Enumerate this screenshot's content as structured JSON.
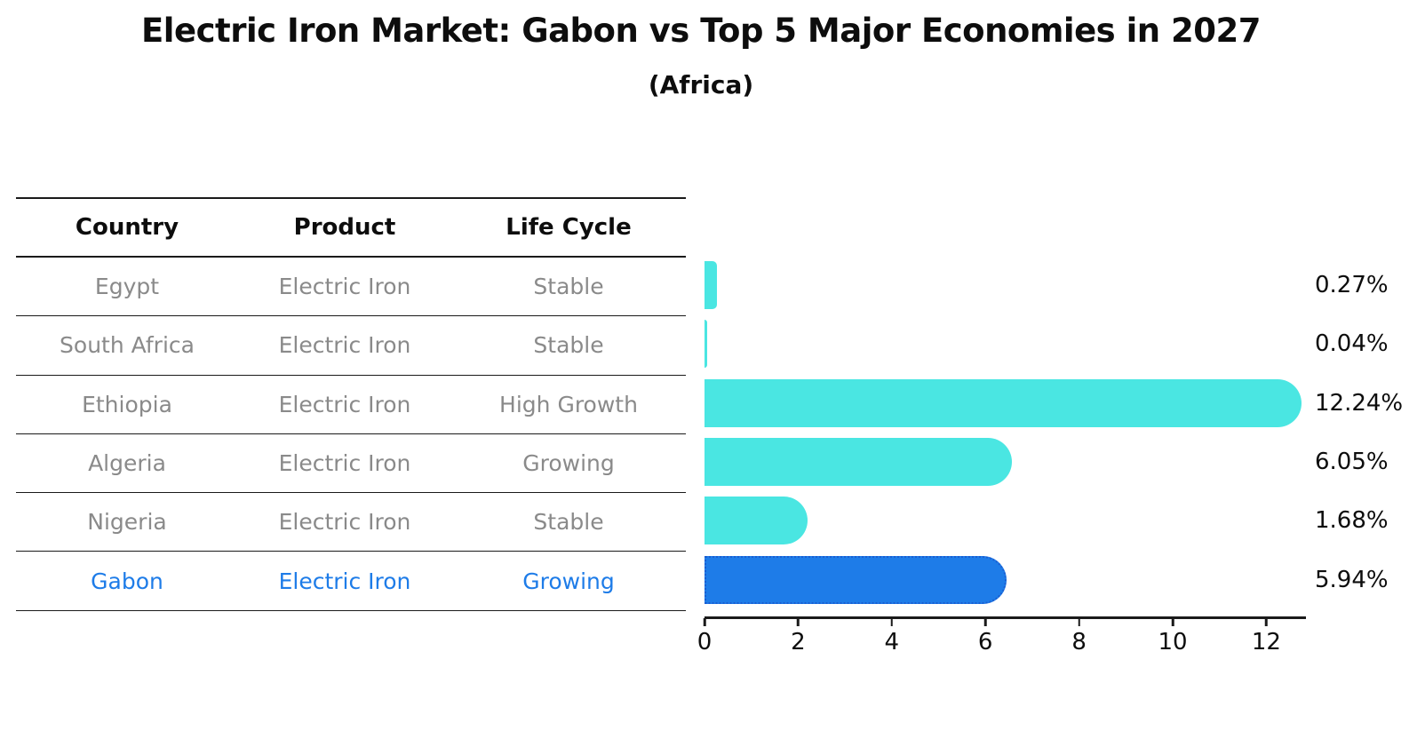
{
  "title": "Electric Iron Market: Gabon vs Top 5 Major Economies in 2027",
  "subtitle": "(Africa)",
  "table": {
    "headers": [
      "Country",
      "Product",
      "Life Cycle"
    ],
    "rows": [
      {
        "country": "Egypt",
        "product": "Electric Iron",
        "life_cycle": "Stable",
        "highlight": false
      },
      {
        "country": "South Africa",
        "product": "Electric Iron",
        "life_cycle": "Stable",
        "highlight": false
      },
      {
        "country": "Ethiopia",
        "product": "Electric Iron",
        "life_cycle": "High Growth",
        "highlight": false
      },
      {
        "country": "Algeria",
        "product": "Electric Iron",
        "life_cycle": "Growing",
        "highlight": false
      },
      {
        "country": "Nigeria",
        "product": "Electric Iron",
        "life_cycle": "Stable",
        "highlight": false
      },
      {
        "country": "Gabon",
        "product": "Electric Iron",
        "life_cycle": "Growing",
        "highlight": true
      }
    ]
  },
  "chart_data": {
    "type": "bar",
    "orientation": "horizontal",
    "title": "Electric Iron Market: Gabon vs Top 5 Major Economies in 2027",
    "subtitle": "(Africa)",
    "categories": [
      "Egypt",
      "South Africa",
      "Ethiopia",
      "Algeria",
      "Nigeria",
      "Gabon"
    ],
    "values": [
      0.27,
      0.04,
      12.24,
      6.05,
      1.68,
      5.94
    ],
    "value_labels": [
      "0.27%",
      "0.04%",
      "12.24%",
      "6.05%",
      "1.68%",
      "5.94%"
    ],
    "xlabel": "",
    "ylabel": "",
    "xlim": [
      0,
      12.81
    ],
    "xticks": [
      0,
      2,
      4,
      6,
      8,
      10,
      12
    ],
    "grid": false,
    "legend": "none",
    "highlight_index": 5,
    "colors": {
      "bar_default": "#4AE6E2",
      "bar_highlight": "#1E7CE8",
      "bar_highlight_border": "#1A5ED2",
      "row_text": "#8a8a8a",
      "highlight_text": "#1e7ce8",
      "text": "#0d0d0d"
    }
  }
}
